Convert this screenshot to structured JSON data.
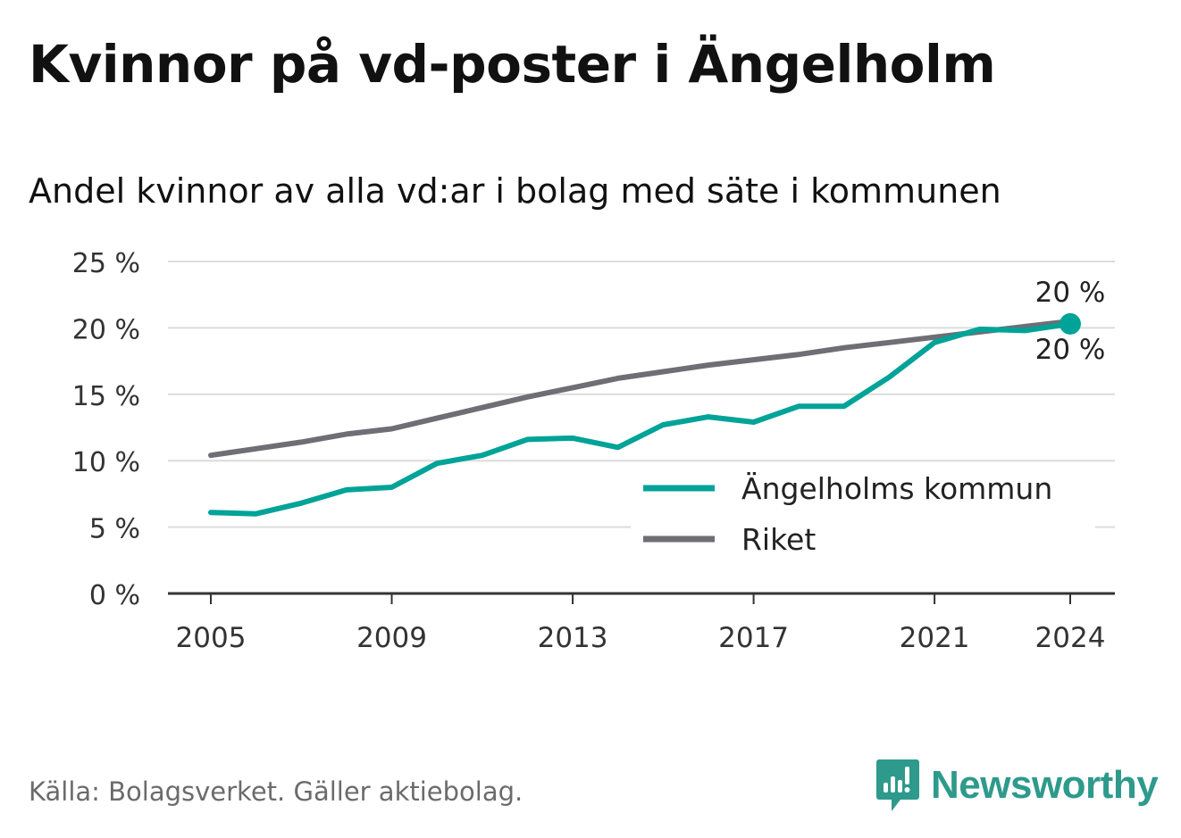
{
  "title": "Kvinnor på vd-poster i Ängelholm",
  "subtitle": "Andel kvinnor av alla vd:ar i bolag med säte i kommunen",
  "source": "Källa: Bolagsverket. Gäller aktiebolag.",
  "brand": "Newsworthy",
  "colors": {
    "local": "#00a398",
    "national": "#6f6e75",
    "grid": "#dcdcdc",
    "axis": "#333333",
    "brand": "#2e9a8c"
  },
  "chart_data": {
    "type": "line",
    "x": [
      2005,
      2006,
      2007,
      2008,
      2009,
      2010,
      2011,
      2012,
      2013,
      2014,
      2015,
      2016,
      2017,
      2018,
      2019,
      2020,
      2021,
      2022,
      2023,
      2024
    ],
    "x_ticks": [
      "2005",
      "2009",
      "2013",
      "2017",
      "2021",
      "2024"
    ],
    "y_ticks": [
      "0 %",
      "5 %",
      "10 %",
      "15 %",
      "20 %",
      "25 %"
    ],
    "ylim": [
      0,
      25
    ],
    "grid": true,
    "legend_position": "bottom-right",
    "series": [
      {
        "name": "Ängelholms kommun",
        "color": "#00a398",
        "values": [
          6.1,
          6.0,
          6.8,
          7.8,
          8.0,
          9.8,
          10.4,
          11.6,
          11.7,
          11.0,
          12.7,
          13.3,
          12.9,
          14.1,
          14.1,
          16.3,
          18.9,
          19.9,
          19.8,
          20.3
        ],
        "end_label": "20 %"
      },
      {
        "name": "Riket",
        "color": "#6f6e75",
        "values": [
          10.4,
          10.9,
          11.4,
          12.0,
          12.4,
          13.2,
          14.0,
          14.8,
          15.5,
          16.2,
          16.7,
          17.2,
          17.6,
          18.0,
          18.5,
          18.9,
          19.3,
          19.7,
          20.1,
          20.5
        ],
        "end_label": "20 %"
      }
    ]
  }
}
